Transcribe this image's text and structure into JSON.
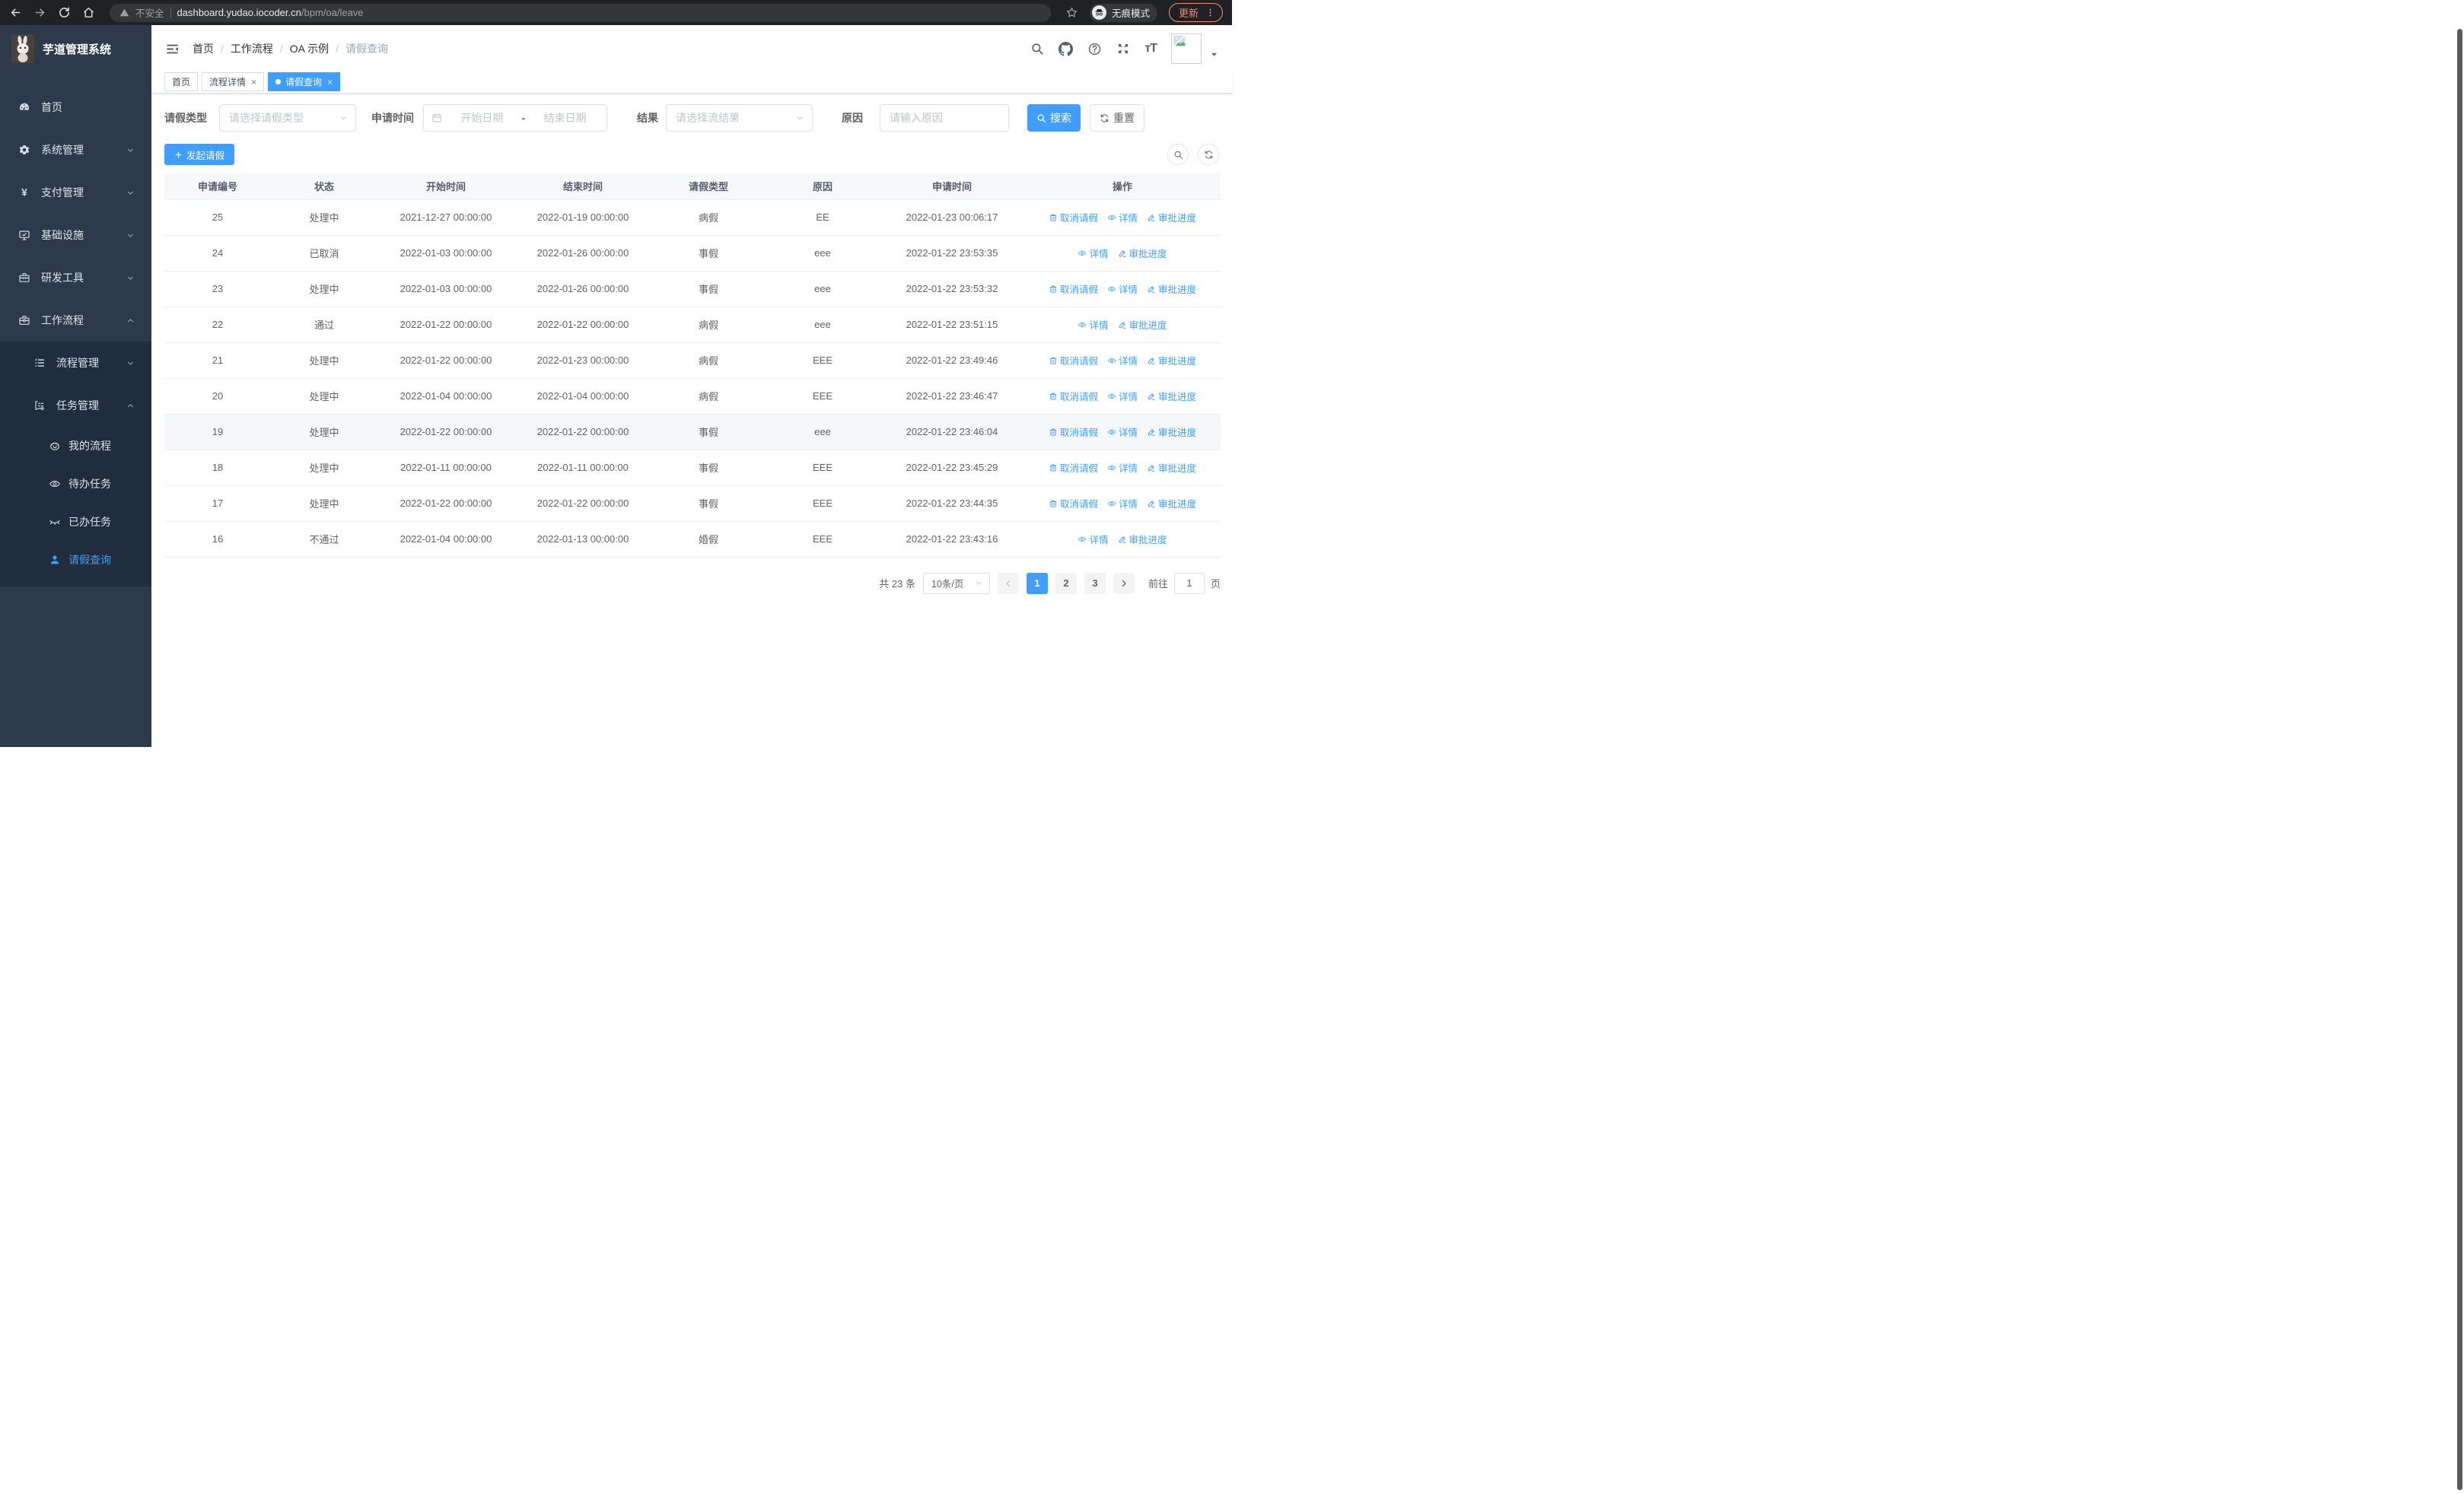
{
  "browser": {
    "security_label": "不安全",
    "url_host": "dashboard.yudao.iocoder.cn",
    "url_path": "/bpm/oa/leave",
    "incognito_label": "无痕模式",
    "update_label": "更新"
  },
  "colors": {
    "accent": "#409eff",
    "sidebar_bg": "#2d3a4b",
    "submenu_bg": "#1f2d3d",
    "update_pill": "#ef8b7d",
    "row_highlight": "#f5f7fa"
  },
  "sidebar": {
    "title": "芋道管理系统",
    "items": [
      {
        "label": "首页",
        "icon": "dashboard-icon",
        "level": 1
      },
      {
        "label": "系统管理",
        "icon": "gear-icon",
        "level": 1,
        "chevron": "down"
      },
      {
        "label": "支付管理",
        "icon": "yen-icon",
        "level": 1,
        "chevron": "down"
      },
      {
        "label": "基础设施",
        "icon": "monitor-icon",
        "level": 1,
        "chevron": "down"
      },
      {
        "label": "研发工具",
        "icon": "toolbox-icon",
        "level": 1,
        "chevron": "down"
      },
      {
        "label": "工作流程",
        "icon": "briefcase-icon",
        "level": 1,
        "chevron": "up",
        "submenu": [
          {
            "label": "流程管理",
            "icon": "list-icon",
            "level": 2,
            "chevron": "down"
          },
          {
            "label": "任务管理",
            "icon": "flow-icon",
            "level": 2,
            "chevron": "up"
          },
          {
            "label": "我的流程",
            "icon": "face-icon",
            "level": 3
          },
          {
            "label": "待办任务",
            "icon": "eye-icon",
            "level": 3
          },
          {
            "label": "已办任务",
            "icon": "eye-closed-icon",
            "level": 3
          },
          {
            "label": "请假查询",
            "icon": "user-icon",
            "level": 3,
            "active": true
          }
        ]
      }
    ]
  },
  "breadcrumb": [
    "首页",
    "工作流程",
    "OA 示例",
    "请假查询"
  ],
  "tabs": [
    {
      "label": "首页",
      "closable": false,
      "active": false
    },
    {
      "label": "流程详情",
      "closable": true,
      "active": false
    },
    {
      "label": "请假查询",
      "closable": true,
      "active": true
    }
  ],
  "filters": {
    "leave_type_label": "请假类型",
    "leave_type_placeholder": "请选择请假类型",
    "apply_time_label": "申请时间",
    "date_start_placeholder": "开始日期",
    "date_separator": "-",
    "date_end_placeholder": "结束日期",
    "result_label": "结果",
    "result_placeholder": "请选择流结果",
    "reason_label": "原因",
    "reason_placeholder": "请输入原因",
    "search_label": "搜索",
    "reset_label": "重置"
  },
  "toolbar": {
    "create_label": "发起请假"
  },
  "table": {
    "headers": [
      "申请编号",
      "状态",
      "开始时间",
      "结束时间",
      "请假类型",
      "原因",
      "申请时间",
      "操作"
    ],
    "action_labels": {
      "cancel": "取消请假",
      "detail": "详情",
      "progress": "审批进度"
    },
    "rows": [
      {
        "id": "25",
        "status": "处理中",
        "start": "2021-12-27 00:00:00",
        "end": "2022-01-19 00:00:00",
        "type": "病假",
        "reason": "EE",
        "apply_time": "2022-01-23 00:06:17",
        "actions": [
          "cancel",
          "detail",
          "progress"
        ],
        "highlight": false
      },
      {
        "id": "24",
        "status": "已取消",
        "start": "2022-01-03 00:00:00",
        "end": "2022-01-26 00:00:00",
        "type": "事假",
        "reason": "eee",
        "apply_time": "2022-01-22 23:53:35",
        "actions": [
          "detail",
          "progress"
        ],
        "highlight": false
      },
      {
        "id": "23",
        "status": "处理中",
        "start": "2022-01-03 00:00:00",
        "end": "2022-01-26 00:00:00",
        "type": "事假",
        "reason": "eee",
        "apply_time": "2022-01-22 23:53:32",
        "actions": [
          "cancel",
          "detail",
          "progress"
        ],
        "highlight": false
      },
      {
        "id": "22",
        "status": "通过",
        "start": "2022-01-22 00:00:00",
        "end": "2022-01-22 00:00:00",
        "type": "病假",
        "reason": "eee",
        "apply_time": "2022-01-22 23:51:15",
        "actions": [
          "detail",
          "progress"
        ],
        "highlight": false
      },
      {
        "id": "21",
        "status": "处理中",
        "start": "2022-01-22 00:00:00",
        "end": "2022-01-23 00:00:00",
        "type": "病假",
        "reason": "EEE",
        "apply_time": "2022-01-22 23:49:46",
        "actions": [
          "cancel",
          "detail",
          "progress"
        ],
        "highlight": false
      },
      {
        "id": "20",
        "status": "处理中",
        "start": "2022-01-04 00:00:00",
        "end": "2022-01-04 00:00:00",
        "type": "病假",
        "reason": "EEE",
        "apply_time": "2022-01-22 23:46:47",
        "actions": [
          "cancel",
          "detail",
          "progress"
        ],
        "highlight": false
      },
      {
        "id": "19",
        "status": "处理中",
        "start": "2022-01-22 00:00:00",
        "end": "2022-01-22 00:00:00",
        "type": "事假",
        "reason": "eee",
        "apply_time": "2022-01-22 23:46:04",
        "actions": [
          "cancel",
          "detail",
          "progress"
        ],
        "highlight": true
      },
      {
        "id": "18",
        "status": "处理中",
        "start": "2022-01-11 00:00:00",
        "end": "2022-01-11 00:00:00",
        "type": "事假",
        "reason": "EEE",
        "apply_time": "2022-01-22 23:45:29",
        "actions": [
          "cancel",
          "detail",
          "progress"
        ],
        "highlight": false
      },
      {
        "id": "17",
        "status": "处理中",
        "start": "2022-01-22 00:00:00",
        "end": "2022-01-22 00:00:00",
        "type": "事假",
        "reason": "EEE",
        "apply_time": "2022-01-22 23:44:35",
        "actions": [
          "cancel",
          "detail",
          "progress"
        ],
        "highlight": false
      },
      {
        "id": "16",
        "status": "不通过",
        "start": "2022-01-04 00:00:00",
        "end": "2022-01-13 00:00:00",
        "type": "婚假",
        "reason": "EEE",
        "apply_time": "2022-01-22 23:43:16",
        "actions": [
          "detail",
          "progress"
        ],
        "highlight": false
      }
    ]
  },
  "pagination": {
    "total": "共 23 条",
    "page_size": "10条/页",
    "pages": [
      "1",
      "2",
      "3"
    ],
    "active_page": "1",
    "goto_label": "前往",
    "goto_value": "1",
    "unit_label": "页"
  }
}
